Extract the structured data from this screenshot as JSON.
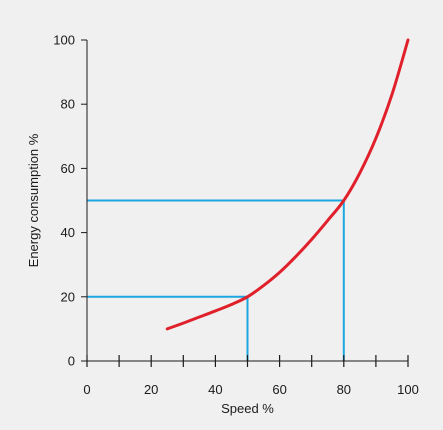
{
  "colors": {
    "background": "#f0f0f0",
    "curve": "#e0202a",
    "guide_lines": "#1ba7e0",
    "axis": "#1a1a1a"
  },
  "chart_data": {
    "type": "line",
    "xlabel": "Speed %",
    "ylabel": "Energy consumption %",
    "xlim": [
      0,
      100
    ],
    "ylim": [
      0,
      100
    ],
    "x_ticks": [
      0,
      20,
      40,
      60,
      80,
      100
    ],
    "x_minor_ticks": [
      10,
      30,
      50,
      70,
      90
    ],
    "y_ticks": [
      0,
      20,
      40,
      60,
      80,
      100
    ],
    "x_tick_labels": [
      "0",
      "20",
      "40",
      "60",
      "80",
      "100"
    ],
    "y_tick_labels": [
      "0",
      "20",
      "40",
      "60",
      "80",
      "100"
    ],
    "grid": false,
    "series": [
      {
        "x": [
          25,
          30,
          35,
          40,
          45,
          50,
          55,
          60,
          65,
          70,
          75,
          80,
          85,
          90,
          95,
          100
        ],
        "y": [
          10,
          11.8,
          13.7,
          15.6,
          17.6,
          20,
          23.5,
          27.6,
          32.5,
          37.9,
          43.8,
          50,
          58.6,
          69.4,
          83,
          100
        ]
      }
    ],
    "guides": [
      {
        "x": 50,
        "y": 20
      },
      {
        "x": 80,
        "y": 50
      }
    ]
  }
}
